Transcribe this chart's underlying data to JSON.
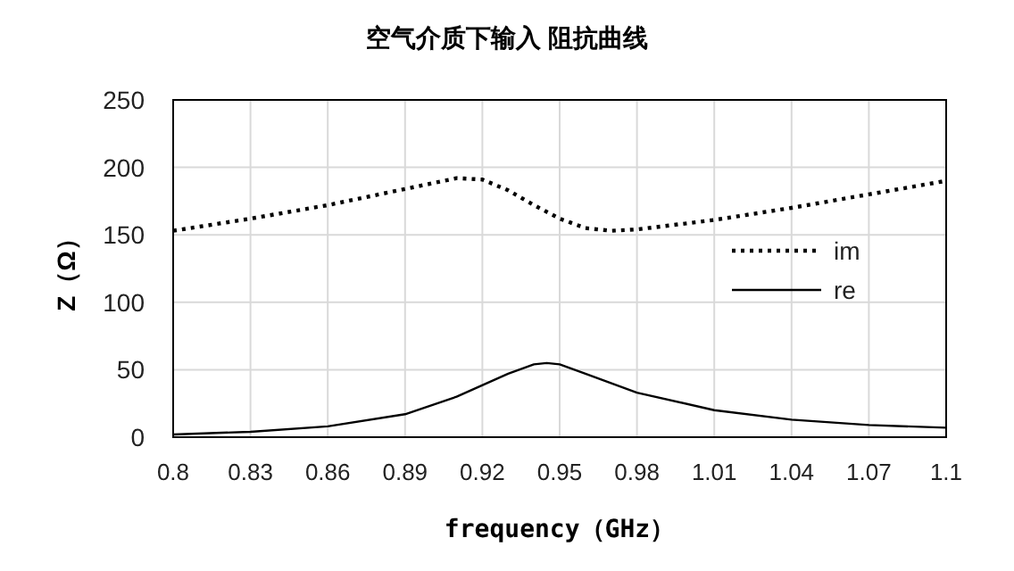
{
  "chart_data": {
    "type": "line",
    "title": "空气介质下输入 阻抗曲线",
    "xlabel": "frequency（GHz）",
    "ylabel": "Z（Ω）",
    "xlim": [
      0.8,
      1.1
    ],
    "xticks": [
      0.8,
      0.83,
      0.86,
      0.89,
      0.92,
      0.95,
      0.98,
      1.01,
      1.04,
      1.07,
      1.1
    ],
    "ylim": [
      0,
      250
    ],
    "yticks": [
      0,
      50,
      100,
      150,
      200,
      250
    ],
    "grid": true,
    "legend": "right",
    "series": [
      {
        "name": "im",
        "color": "#000000",
        "line_style": "dotted",
        "x": [
          0.8,
          0.83,
          0.86,
          0.89,
          0.91,
          0.92,
          0.93,
          0.94,
          0.95,
          0.96,
          0.97,
          0.98,
          1.01,
          1.04,
          1.07,
          1.1
        ],
        "values": [
          153,
          162,
          172,
          184,
          192,
          191,
          183,
          172,
          162,
          155,
          153,
          154,
          161,
          170,
          180,
          190
        ]
      },
      {
        "name": "re",
        "color": "#000000",
        "line_style": "solid",
        "x": [
          0.8,
          0.83,
          0.86,
          0.89,
          0.91,
          0.93,
          0.94,
          0.945,
          0.95,
          0.96,
          0.98,
          1.01,
          1.04,
          1.07,
          1.1
        ],
        "values": [
          2,
          4,
          8,
          17,
          30,
          47,
          54,
          55,
          54,
          47,
          33,
          20,
          13,
          9,
          7
        ]
      }
    ]
  }
}
